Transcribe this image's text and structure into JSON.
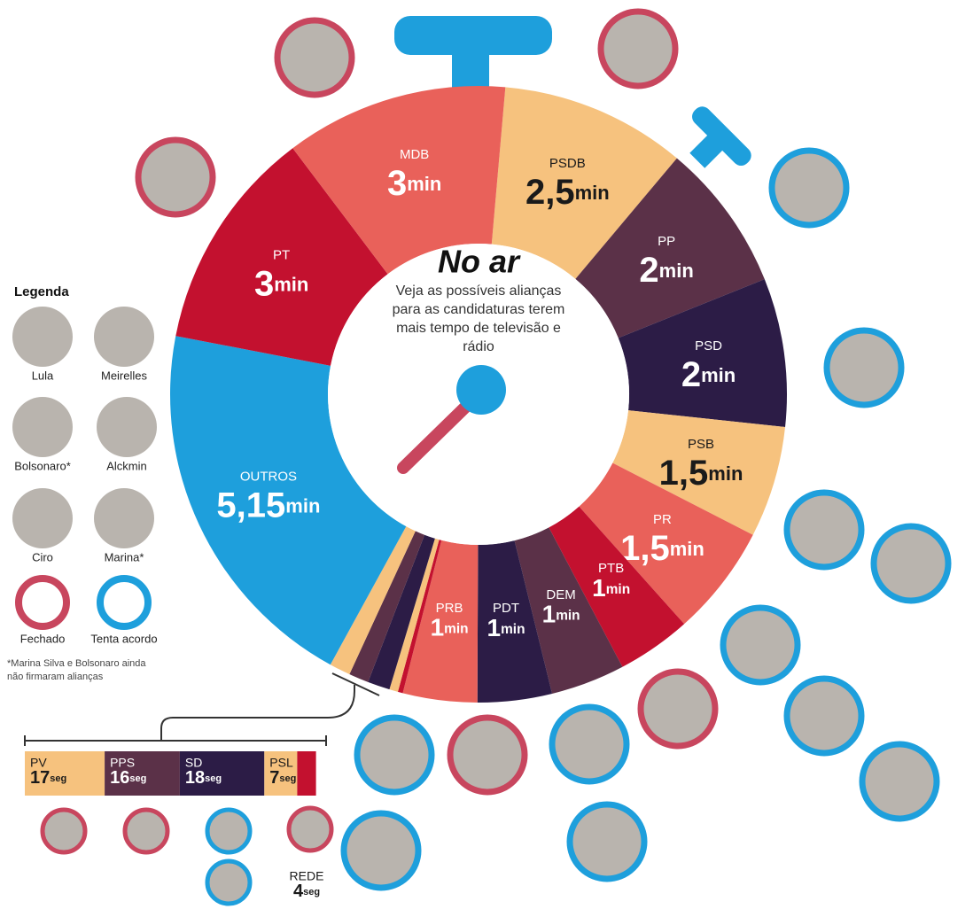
{
  "chart_data": [
    {
      "type": "donut",
      "title": "No ar",
      "subtitle": "Veja as possíveis alianças para as candidaturas terem mais tempo de televisão e rádio",
      "categories": [
        "PSDB",
        "PP",
        "PSD",
        "PSB",
        "PR",
        "PTB",
        "DEM",
        "PDT",
        "PRB",
        "OUTROS",
        "PT",
        "MDB"
      ],
      "values": [
        2.5,
        2,
        2,
        1.5,
        1.5,
        1,
        1,
        1,
        1,
        5.15,
        3,
        3
      ],
      "value_labels": [
        "2,5",
        "2",
        "2",
        "1,5",
        "1,5",
        "1",
        "1",
        "1",
        "1",
        "5,15",
        "3",
        "3"
      ],
      "unit": "min",
      "colors": [
        "#f6c27e",
        "#5b3148",
        "#2c1c46",
        "#f6c27e",
        "#e9615a",
        "#c3112f",
        "#5b3148",
        "#2c1c46",
        "#e9615a",
        "#1e9fdc",
        "#c3112f",
        "#e9615a"
      ]
    },
    {
      "type": "bar",
      "categories": [
        "PV",
        "PPS",
        "SD",
        "PSL",
        "REDE"
      ],
      "values": [
        17,
        16,
        18,
        7,
        4
      ],
      "unit": "seg",
      "colors": [
        "#f6c27e",
        "#5b3148",
        "#2c1c46",
        "#f6c27e",
        "#c3112f"
      ]
    }
  ],
  "legend": {
    "title": "Legenda",
    "people": [
      "Lula",
      "Meirelles",
      "Bolsonaro*",
      "Alckmin",
      "Ciro",
      "Marina*"
    ],
    "closed": "Fechado",
    "trying": "Tenta acordo",
    "note": "*Marina Silva e Bolsonaro ainda não firmaram alianças"
  }
}
